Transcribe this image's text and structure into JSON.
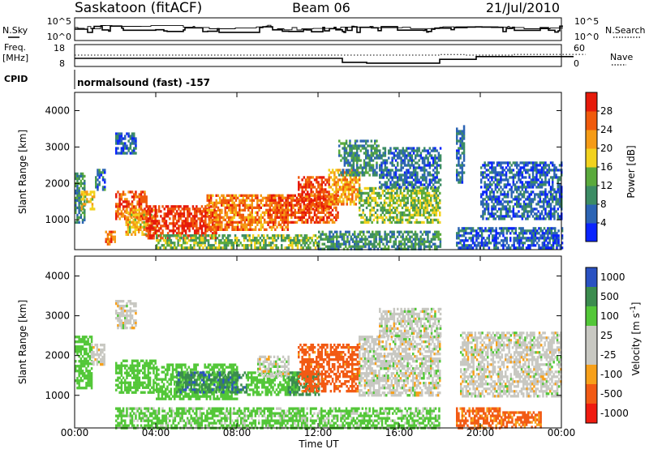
{
  "header": {
    "station": "Saskatoon (fitACF)",
    "beam": "Beam 06",
    "date": "21/Jul/2010"
  },
  "aux": {
    "nsky_label": "N.Sky",
    "nsky_ticks": [
      "10^5",
      "10^0"
    ],
    "nsearch_label": "N.Search",
    "nsearch_ticks": [
      "10^5",
      "10^0"
    ],
    "freq_label": "Freq.",
    "freq_unit": "[MHz]",
    "freq_ticks": [
      "18",
      "8"
    ],
    "nave_label": "Nave",
    "nave_ticks": [
      "60",
      "0"
    ],
    "cpid_label": "CPID",
    "cpid_text": "normalsound (fast) -157"
  },
  "colors": {
    "power_scale": [
      "#0a24ff",
      "#2c64b4",
      "#3c8c64",
      "#5aaa3c",
      "#f2d21e",
      "#f59b16",
      "#f05a0c",
      "#e61a0a"
    ],
    "velocity_scale": [
      "#f01b10",
      "#f25a14",
      "#f7a01a",
      "#c8c8c2",
      "#c8c8c2",
      "#53c738",
      "#3b8c4e",
      "#2a52c2"
    ]
  },
  "chart_data": [
    {
      "type": "heatmap",
      "title": "Power",
      "ylabel": "Slant Range [km]",
      "xlabel": "Time UT",
      "x_ticks": [
        "00:00",
        "04:00",
        "08:00",
        "12:00",
        "16:00",
        "20:00",
        "00:00"
      ],
      "y_ticks": [
        "1000",
        "2000",
        "3000",
        "4000"
      ],
      "xlim": [
        0,
        24
      ],
      "ylim": [
        180,
        4500
      ],
      "colorbar": {
        "label": "Power [dB]",
        "ticks": [
          "4",
          "8",
          "12",
          "16",
          "20",
          "24",
          "28"
        ],
        "range": [
          0,
          32
        ]
      },
      "regions": [
        {
          "t0": 0.0,
          "t1": 0.5,
          "r0": 900,
          "r1": 2300,
          "value": 10
        },
        {
          "t0": 0.3,
          "t1": 1.0,
          "r0": 1300,
          "r1": 1800,
          "value": 18
        },
        {
          "t0": 1.0,
          "t1": 1.5,
          "r0": 1800,
          "r1": 2400,
          "value": 8
        },
        {
          "t0": 1.5,
          "t1": 2.0,
          "r0": 300,
          "r1": 700,
          "value": 24
        },
        {
          "t0": 2.0,
          "t1": 3.0,
          "r0": 2800,
          "r1": 3400,
          "value": 6
        },
        {
          "t0": 2.0,
          "t1": 3.5,
          "r0": 1000,
          "r1": 1800,
          "value": 26
        },
        {
          "t0": 2.5,
          "t1": 4.0,
          "r0": 600,
          "r1": 1300,
          "value": 20
        },
        {
          "t0": 3.5,
          "t1": 7.0,
          "r0": 500,
          "r1": 1400,
          "value": 29
        },
        {
          "t0": 6.5,
          "t1": 10.5,
          "r0": 700,
          "r1": 1700,
          "value": 24
        },
        {
          "t0": 4.0,
          "t1": 12.0,
          "r0": 200,
          "r1": 600,
          "value": 14
        },
        {
          "t0": 9.5,
          "t1": 13.0,
          "r0": 900,
          "r1": 1700,
          "value": 27
        },
        {
          "t0": 11.0,
          "t1": 12.5,
          "r0": 1300,
          "r1": 2200,
          "value": 28
        },
        {
          "t0": 12.5,
          "t1": 14.0,
          "r0": 1400,
          "r1": 2400,
          "value": 22
        },
        {
          "t0": 13.0,
          "t1": 15.0,
          "r0": 2200,
          "r1": 3200,
          "value": 10
        },
        {
          "t0": 14.0,
          "t1": 18.0,
          "r0": 900,
          "r1": 1900,
          "value": 15
        },
        {
          "t0": 15.0,
          "t1": 18.0,
          "r0": 1900,
          "r1": 3000,
          "value": 7
        },
        {
          "t0": 12.0,
          "t1": 18.0,
          "r0": 200,
          "r1": 700,
          "value": 10
        },
        {
          "t0": 18.8,
          "t1": 19.2,
          "r0": 2000,
          "r1": 3600,
          "value": 8
        },
        {
          "t0": 18.8,
          "t1": 24.0,
          "r0": 200,
          "r1": 800,
          "value": 6
        },
        {
          "t0": 20.0,
          "t1": 24.0,
          "r0": 1000,
          "r1": 2600,
          "value": 6
        }
      ]
    },
    {
      "type": "heatmap",
      "title": "Velocity",
      "ylabel": "Slant Range [km]",
      "xlabel": "Time UT",
      "x_ticks": [
        "00:00",
        "04:00",
        "08:00",
        "12:00",
        "16:00",
        "20:00",
        "00:00"
      ],
      "y_ticks": [
        "1000",
        "2000",
        "3000",
        "4000"
      ],
      "xlim": [
        0,
        24
      ],
      "ylim": [
        180,
        4500
      ],
      "colorbar": {
        "label": "Velocity [m s^-1]",
        "ticks": [
          "1000",
          "500",
          "100",
          "25",
          "-25",
          "-100",
          "-500",
          "-1000"
        ]
      },
      "regions": [
        {
          "t0": 0.0,
          "t1": 0.8,
          "r0": 1200,
          "r1": 2500,
          "value": 300
        },
        {
          "t0": 0.8,
          "t1": 1.5,
          "r0": 1800,
          "r1": 2300,
          "value": 0
        },
        {
          "t0": 2.0,
          "t1": 4.0,
          "r0": 1100,
          "r1": 1900,
          "value": 300
        },
        {
          "t0": 2.0,
          "t1": 3.0,
          "r0": 2700,
          "r1": 3400,
          "value": 0
        },
        {
          "t0": 4.0,
          "t1": 8.0,
          "r0": 900,
          "r1": 1800,
          "value": 250
        },
        {
          "t0": 5.0,
          "t1": 8.5,
          "r0": 1100,
          "r1": 1600,
          "value": 800
        },
        {
          "t0": 8.5,
          "t1": 11.0,
          "r0": 1000,
          "r1": 1600,
          "value": 200
        },
        {
          "t0": 9.0,
          "t1": 10.5,
          "r0": 1500,
          "r1": 2000,
          "value": 0
        },
        {
          "t0": 10.5,
          "t1": 12.0,
          "r0": 1000,
          "r1": 1600,
          "value": 700
        },
        {
          "t0": 11.0,
          "t1": 14.0,
          "r0": 1100,
          "r1": 2300,
          "value": -200
        },
        {
          "t0": 14.0,
          "t1": 18.0,
          "r0": 1000,
          "r1": 2500,
          "value": 0
        },
        {
          "t0": 2.0,
          "t1": 18.0,
          "r0": 200,
          "r1": 700,
          "value": 60
        },
        {
          "t0": 15.0,
          "t1": 18.0,
          "r0": 2500,
          "r1": 3200,
          "value": 0
        },
        {
          "t0": 18.8,
          "t1": 21.0,
          "r0": 200,
          "r1": 700,
          "value": -150
        },
        {
          "t0": 21.0,
          "t1": 23.0,
          "r0": 200,
          "r1": 600,
          "value": -150
        },
        {
          "t0": 19.0,
          "t1": 24.0,
          "r0": 1000,
          "r1": 2600,
          "value": 0
        }
      ]
    }
  ]
}
